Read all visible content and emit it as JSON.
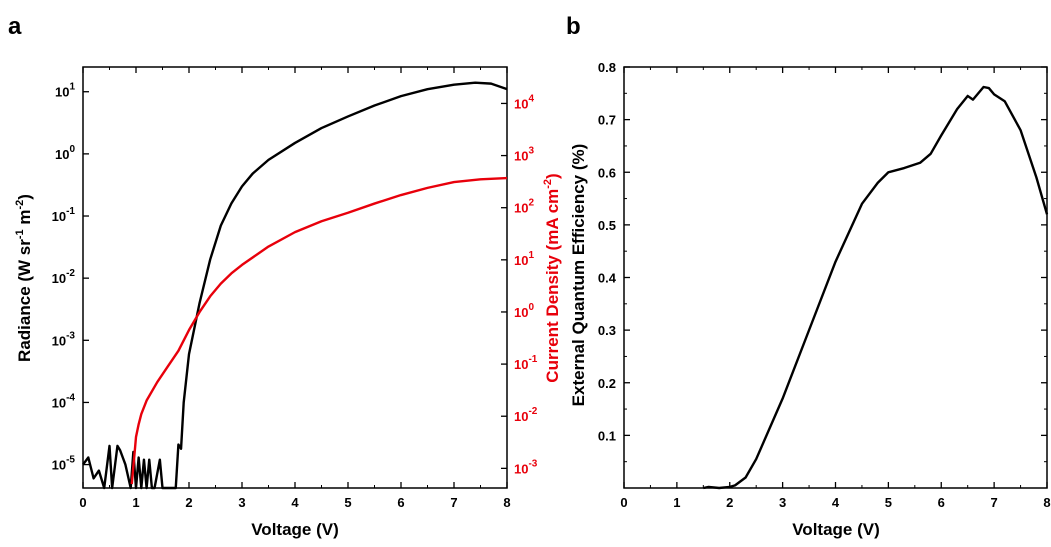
{
  "panels": [
    {
      "label": "a",
      "chart_index": 0
    },
    {
      "label": "b",
      "chart_index": 1
    }
  ],
  "chart_data": [
    {
      "type": "line",
      "title": "",
      "xlabel": "Voltage (V)",
      "xlim": [
        0,
        8
      ],
      "xticks": [
        0,
        1,
        2,
        3,
        4,
        5,
        6,
        7,
        8
      ],
      "y_left": {
        "label": {
          "base": "Radiance (W sr",
          "sup1": "-1",
          "mid": " m",
          "sup2": "-2",
          "end": ")"
        },
        "scale": "log",
        "lim": [
          4.2e-06,
          25
        ],
        "tick_exponents": [
          -5,
          -4,
          -3,
          -2,
          -1,
          0,
          1
        ],
        "color": "#000000"
      },
      "y_right": {
        "label": {
          "base": "Current Density (mA cm",
          "sup": "-2",
          "end": ")"
        },
        "scale": "log",
        "lim": [
          0.00042,
          50000
        ],
        "tick_exponents": [
          -3,
          -2,
          -1,
          0,
          1,
          2,
          3,
          4
        ],
        "color": "#e8000b"
      },
      "series": [
        {
          "axis": "left",
          "color": "#000000",
          "x": [
            0.0,
            0.1,
            0.2,
            0.3,
            0.4,
            0.5,
            0.55,
            0.65,
            0.7,
            0.8,
            0.9,
            0.95,
            1.0,
            1.05,
            1.1,
            1.15,
            1.2,
            1.25,
            1.3,
            1.35,
            1.45,
            1.5,
            1.55,
            1.6,
            1.65,
            1.7,
            1.75,
            1.8,
            1.85,
            1.9,
            2.0,
            2.2,
            2.4,
            2.6,
            2.8,
            3.0,
            3.2,
            3.5,
            4.0,
            4.5,
            5.0,
            5.5,
            6.0,
            6.5,
            7.0,
            7.4,
            7.7,
            8.0
          ],
          "y": [
            1e-05,
            1.3e-05,
            6e-06,
            8e-06,
            4e-06,
            2e-05,
            4e-06,
            2e-05,
            1.7e-05,
            1e-05,
            4e-06,
            1.6e-05,
            4e-06,
            1.3e-05,
            4e-06,
            1.2e-05,
            4e-06,
            1.2e-05,
            4e-06,
            4e-06,
            1.2e-05,
            4e-06,
            4e-06,
            4e-06,
            4e-06,
            4e-06,
            4e-06,
            2.1e-05,
            1.8e-05,
            0.0001,
            0.0006,
            0.004,
            0.02,
            0.07,
            0.16,
            0.3,
            0.48,
            0.8,
            1.5,
            2.6,
            4.0,
            6.0,
            8.5,
            11,
            13,
            14,
            13.5,
            11
          ]
        },
        {
          "axis": "right",
          "color": "#e8000b",
          "x": [
            0.92,
            0.97,
            1.0,
            1.05,
            1.1,
            1.2,
            1.4,
            1.6,
            1.8,
            2.0,
            2.2,
            2.4,
            2.6,
            2.8,
            3.0,
            3.5,
            4.0,
            4.5,
            5.0,
            5.5,
            6.0,
            6.5,
            7.0,
            7.5,
            8.0
          ],
          "y": [
            0.0005,
            0.0018,
            0.004,
            0.007,
            0.011,
            0.02,
            0.045,
            0.09,
            0.18,
            0.45,
            1.0,
            2.0,
            3.5,
            5.5,
            8.0,
            18,
            34,
            55,
            80,
            120,
            175,
            240,
            310,
            350,
            370
          ]
        }
      ]
    },
    {
      "type": "line",
      "title": "",
      "xlabel": "Voltage (V)",
      "ylabel": "External Quantum Efficiency (%)",
      "xlim": [
        0,
        8
      ],
      "ylim": [
        0,
        0.8
      ],
      "xticks": [
        0,
        1,
        2,
        3,
        4,
        5,
        6,
        7,
        8
      ],
      "yticks": [
        0.1,
        0.2,
        0.3,
        0.4,
        0.5,
        0.6,
        0.7,
        0.8
      ],
      "series": [
        {
          "color": "#000000",
          "x": [
            1.5,
            1.6,
            1.7,
            1.8,
            1.9,
            2.0,
            2.1,
            2.3,
            2.5,
            3.0,
            3.5,
            4.0,
            4.5,
            4.8,
            5.0,
            5.3,
            5.6,
            5.8,
            6.0,
            6.3,
            6.5,
            6.6,
            6.8,
            6.9,
            7.0,
            7.2,
            7.5,
            7.8,
            8.0
          ],
          "y": [
            0.0,
            0.002,
            0.001,
            0.0,
            0.001,
            0.002,
            0.005,
            0.02,
            0.055,
            0.17,
            0.3,
            0.43,
            0.54,
            0.58,
            0.6,
            0.608,
            0.618,
            0.635,
            0.67,
            0.72,
            0.745,
            0.738,
            0.762,
            0.76,
            0.748,
            0.735,
            0.68,
            0.59,
            0.52
          ]
        }
      ]
    }
  ]
}
